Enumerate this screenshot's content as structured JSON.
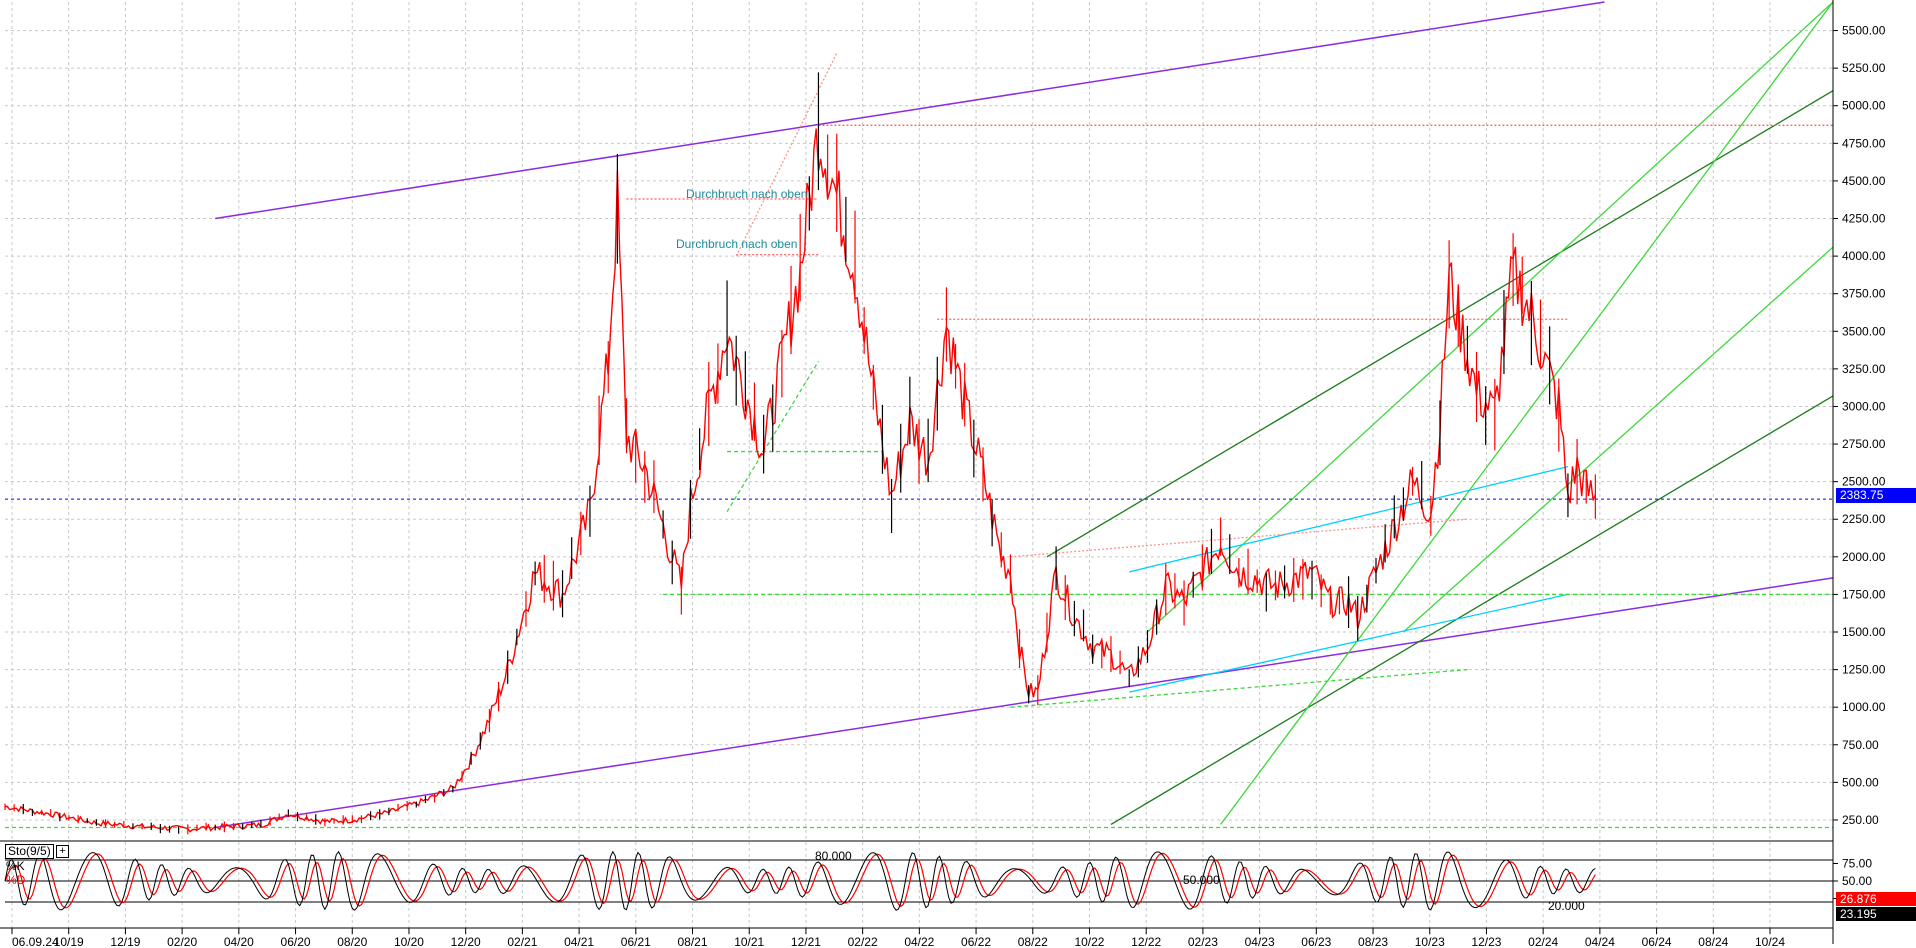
{
  "chart_data": {
    "type": "candlestick",
    "price_axis": {
      "ticks": [
        "250.00",
        "500.00",
        "750.00",
        "1000.00",
        "1250.00",
        "1500.00",
        "1750.00",
        "2000.00",
        "2250.00",
        "2500.00",
        "2750.00",
        "3000.00",
        "3250.00",
        "3500.00",
        "3750.00",
        "4000.00",
        "4250.00",
        "4500.00",
        "4750.00",
        "5000.00",
        "5250.00",
        "5500.00"
      ],
      "range": [
        130,
        5690
      ]
    },
    "time_axis": {
      "ticks": [
        "06.09.24",
        "10/19",
        "12/19",
        "02/20",
        "04/20",
        "06/20",
        "08/20",
        "10/20",
        "12/20",
        "02/21",
        "04/21",
        "06/21",
        "08/21",
        "10/21",
        "12/21",
        "02/22",
        "04/22",
        "06/22",
        "08/22",
        "10/22",
        "12/22",
        "02/23",
        "04/23",
        "06/23",
        "08/23",
        "10/23",
        "12/23",
        "02/24",
        "04/24",
        "06/24",
        "08/24",
        "10/24"
      ]
    },
    "last_price": "2383.75",
    "last_price_color": "#0000ff",
    "price_series": [
      [
        0,
        340
      ],
      [
        5,
        290
      ],
      [
        10,
        230
      ],
      [
        15,
        205
      ],
      [
        20,
        190
      ],
      [
        24,
        205
      ],
      [
        28,
        215
      ],
      [
        31,
        290
      ],
      [
        35,
        240
      ],
      [
        38,
        250
      ],
      [
        42,
        300
      ],
      [
        46,
        380
      ],
      [
        49,
        460
      ],
      [
        51,
        650
      ],
      [
        53,
        920
      ],
      [
        55,
        1250
      ],
      [
        58,
        1900
      ],
      [
        61,
        1750
      ],
      [
        64,
        2300
      ],
      [
        66,
        3300
      ],
      [
        67,
        4350
      ],
      [
        68,
        2800
      ],
      [
        70,
        2600
      ],
      [
        72,
        2200
      ],
      [
        74,
        1800
      ],
      [
        75,
        2350
      ],
      [
        77,
        3000
      ],
      [
        79,
        3500
      ],
      [
        81,
        3100
      ],
      [
        83,
        2700
      ],
      [
        85,
        3300
      ],
      [
        87,
        3900
      ],
      [
        89,
        4850
      ],
      [
        91,
        4400
      ],
      [
        93,
        3900
      ],
      [
        95,
        3100
      ],
      [
        97,
        2400
      ],
      [
        99,
        2900
      ],
      [
        101,
        2650
      ],
      [
        103,
        3550
      ],
      [
        105,
        3000
      ],
      [
        107,
        2550
      ],
      [
        109,
        2000
      ],
      [
        110,
        1900
      ],
      [
        111,
        1400
      ],
      [
        112,
        1100
      ],
      [
        113,
        1100
      ],
      [
        114,
        1500
      ],
      [
        115,
        1900
      ],
      [
        117,
        1600
      ],
      [
        119,
        1400
      ],
      [
        121,
        1350
      ],
      [
        123,
        1200
      ],
      [
        125,
        1400
      ],
      [
        127,
        1800
      ],
      [
        129,
        1700
      ],
      [
        131,
        1900
      ],
      [
        133,
        2100
      ],
      [
        135,
        1900
      ],
      [
        137,
        1850
      ],
      [
        139,
        1800
      ],
      [
        141,
        1850
      ],
      [
        143,
        1900
      ],
      [
        145,
        1700
      ],
      [
        147,
        1700
      ],
      [
        148,
        1600
      ],
      [
        150,
        1900
      ],
      [
        152,
        2200
      ],
      [
        154,
        2500
      ],
      [
        156,
        2300
      ],
      [
        157,
        2900
      ],
      [
        158,
        3850
      ],
      [
        159,
        3600
      ],
      [
        161,
        3100
      ],
      [
        163,
        2950
      ],
      [
        165,
        3900
      ],
      [
        167,
        3600
      ],
      [
        168,
        3400
      ],
      [
        169,
        3200
      ],
      [
        170,
        3000
      ],
      [
        171,
        2400
      ],
      [
        172,
        2600
      ],
      [
        173,
        2450
      ],
      [
        174,
        2380
      ]
    ],
    "x_span": 200,
    "stochastic": {
      "title": "Sto(9/5)",
      "series": [
        "%K",
        "%D"
      ],
      "series_colors": [
        "#000000",
        "#ff0000"
      ],
      "ticks": [
        "75.00",
        "50.00",
        "25.00"
      ],
      "levels": [
        "80.000",
        "50.000",
        "20.000"
      ],
      "k_value": "26.876",
      "d_value": "23.195"
    },
    "annotations": [
      "Durchbruch nach oben",
      "Durchbruch nach oben"
    ]
  }
}
